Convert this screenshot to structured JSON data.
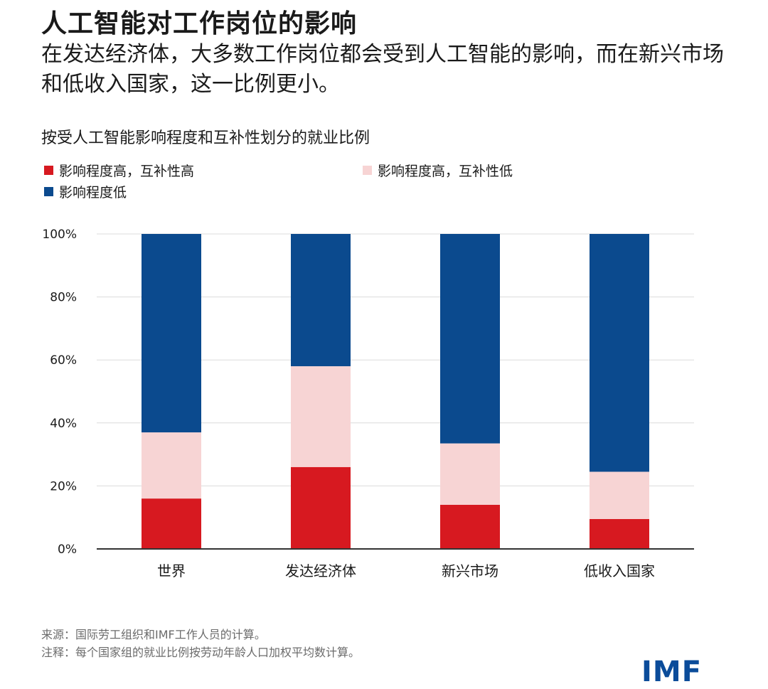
{
  "header": {
    "title": "人工智能对工作岗位的影响",
    "subtitle": "在发达经济体，大多数工作岗位都会受到人工智能的影响，而在新兴市场和低收入国家，这一比例更小。"
  },
  "chart_data": {
    "type": "bar",
    "stacked": true,
    "title": "按受人工智能影响程度和互补性划分的就业比例",
    "categories": [
      "世界",
      "发达经济体",
      "新兴市场",
      "低收入国家"
    ],
    "series": [
      {
        "name": "影响程度高，互补性高",
        "color": "#d71920",
        "values": [
          16,
          26,
          14,
          9.5
        ]
      },
      {
        "name": "影响程度高，互补性低",
        "color": "#f7d4d4",
        "values": [
          21,
          32,
          19.5,
          15
        ]
      },
      {
        "name": "影响程度低",
        "color": "#0b4a8e",
        "values": [
          63,
          42,
          66.5,
          75.5
        ]
      }
    ],
    "ylim": [
      0,
      100
    ],
    "yticks": [
      "0%",
      "20%",
      "40%",
      "60%",
      "80%",
      "100%"
    ],
    "ytick_values": [
      0,
      20,
      40,
      60,
      80,
      100
    ],
    "grid": true,
    "legend_position": "top-left"
  },
  "footer": {
    "source": "来源：国际劳工组织和IMF工作人员的计算。",
    "note": "注释：每个国家组的就业比例按劳动年龄人口加权平均数计算。",
    "logo": "IMF"
  }
}
